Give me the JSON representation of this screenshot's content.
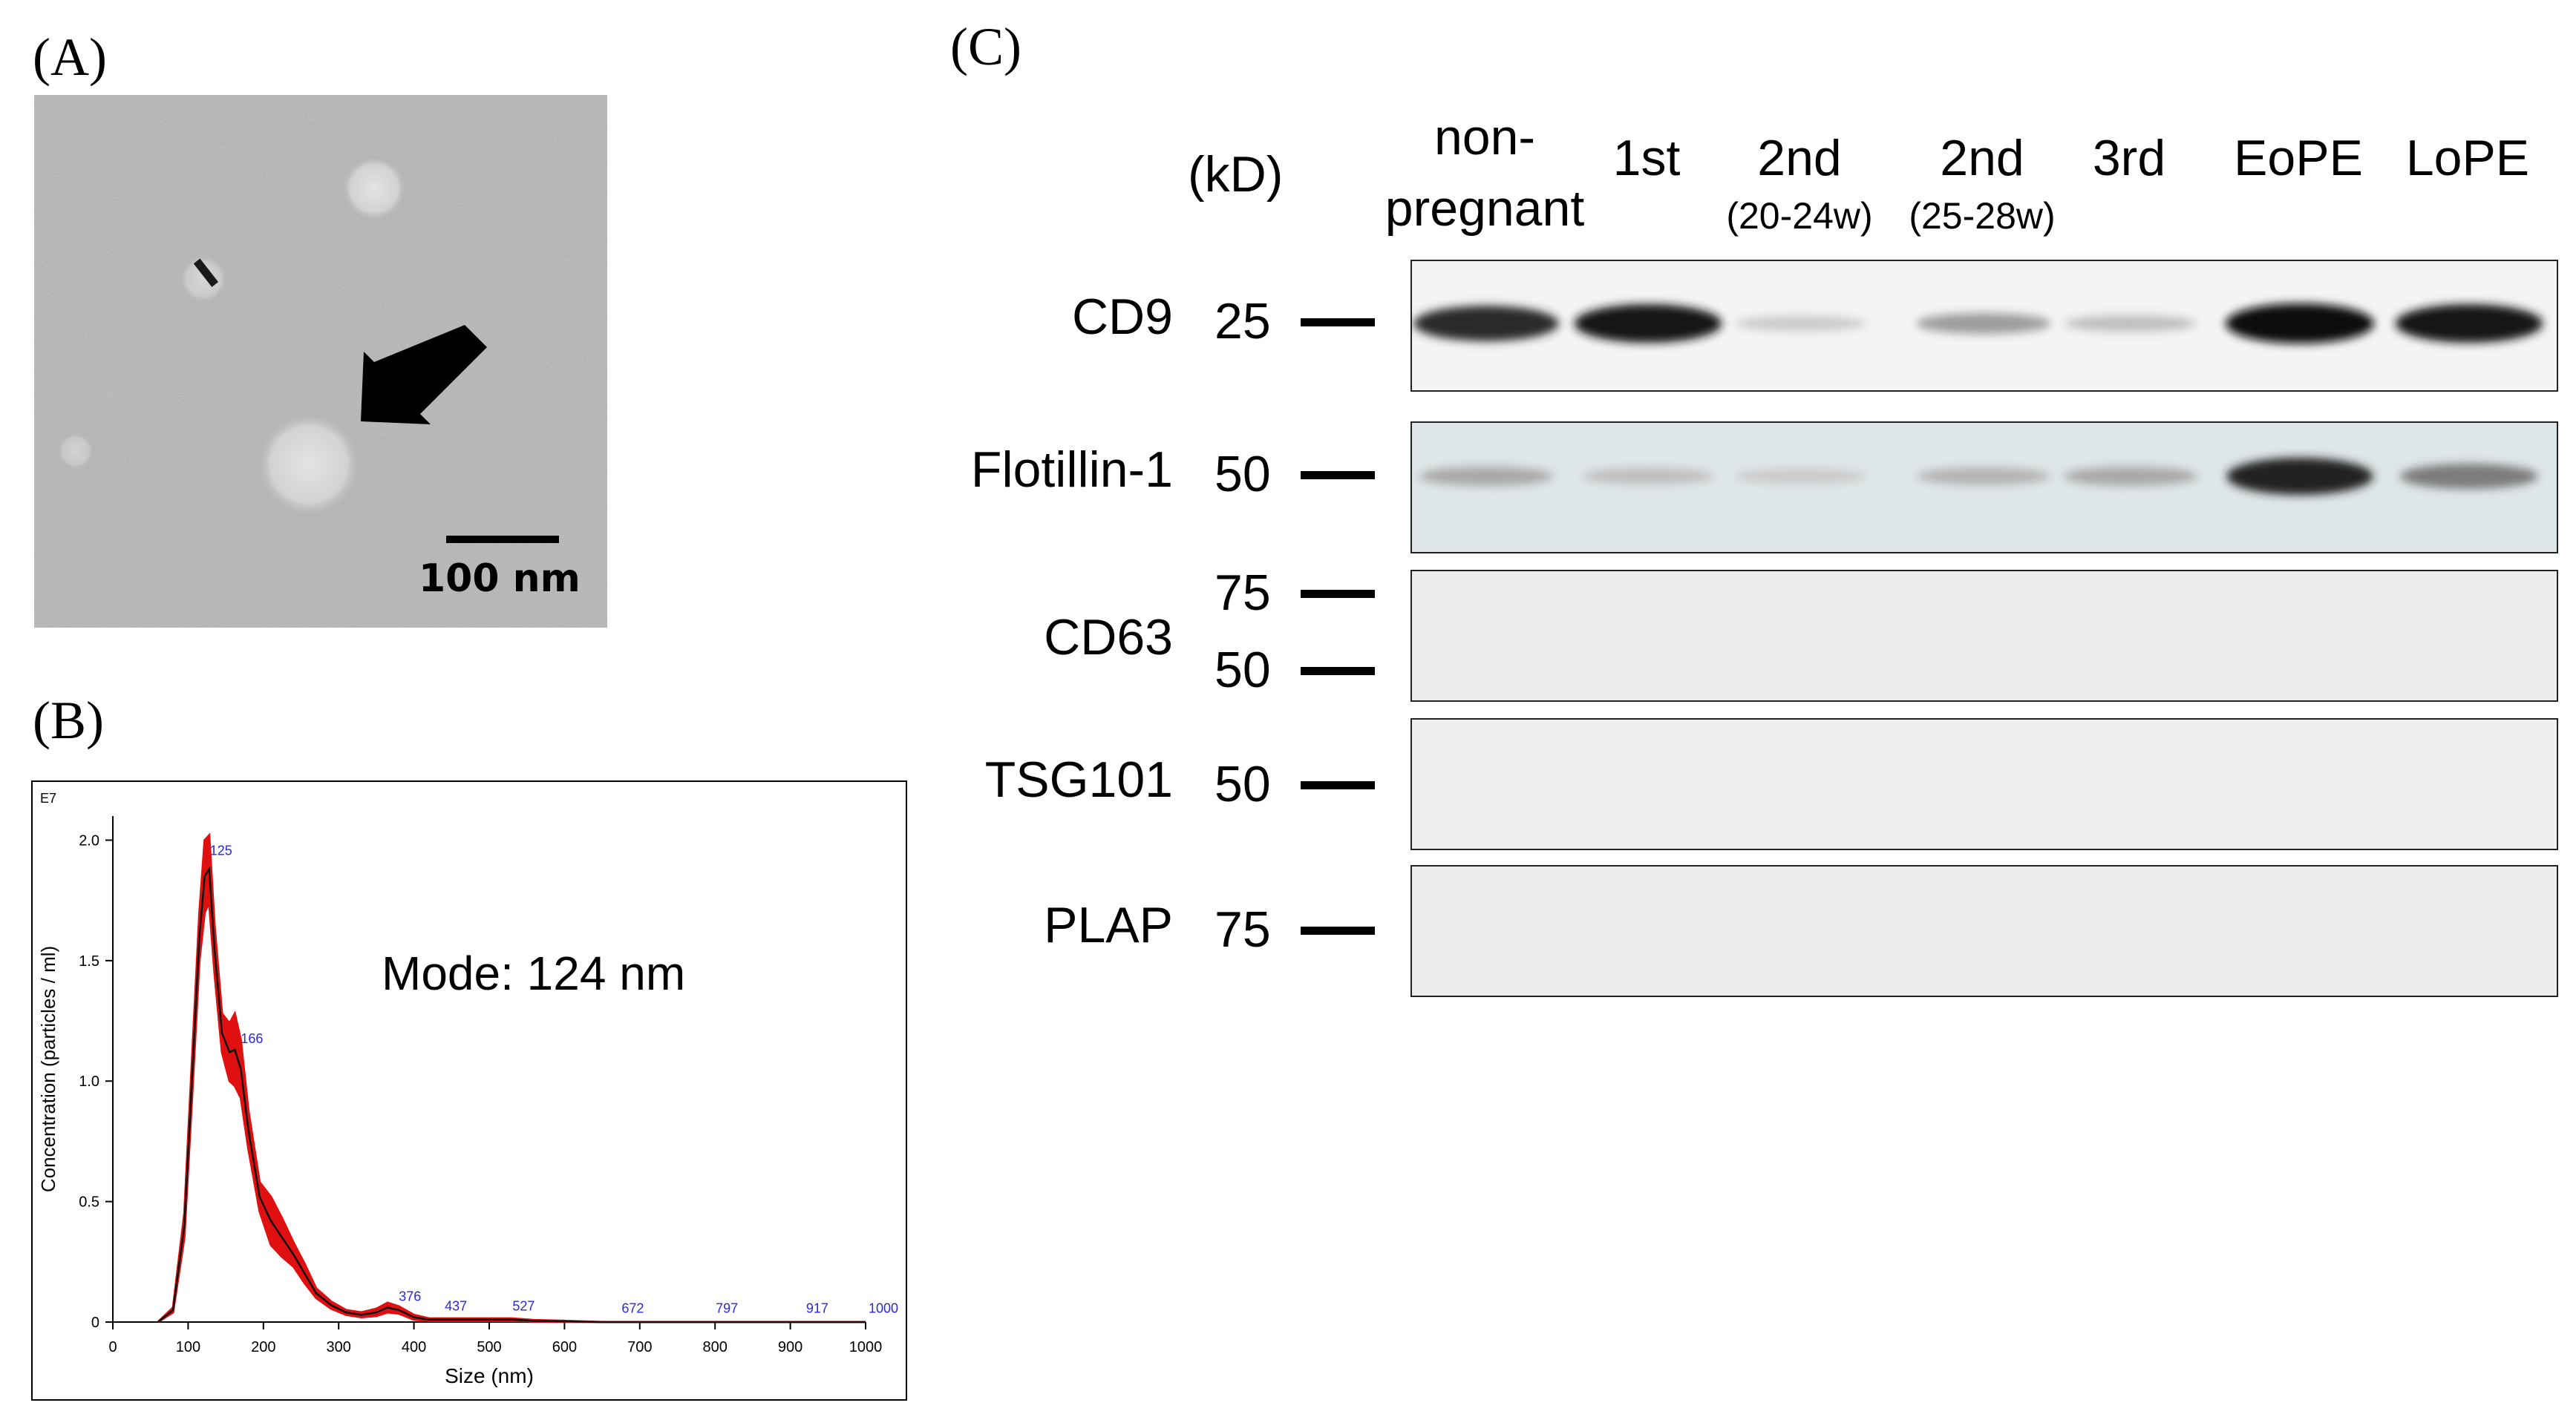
{
  "panels": {
    "a": {
      "label": "(A)",
      "scale_bar": "100 nm"
    },
    "b": {
      "label": "(B)",
      "mode_text": "Mode: 124 nm"
    },
    "c": {
      "label": "(C)"
    }
  },
  "chart_data": {
    "type": "area",
    "exponent_label": "E7",
    "xlabel": "Size (nm)",
    "ylabel": "Concentration (particles / ml)",
    "xlim": [
      0,
      1000
    ],
    "ylim": [
      0,
      2.1
    ],
    "x_ticks": [
      0,
      100,
      200,
      300,
      400,
      500,
      600,
      700,
      800,
      900,
      1000
    ],
    "y_ticks": [
      "0",
      "0.5",
      "1.0",
      "1.5",
      "2.0"
    ],
    "y_tick_values": [
      0,
      0.5,
      1.0,
      1.5,
      2.0
    ],
    "peak_labels": [
      {
        "x": 125,
        "y": 1.92,
        "text": "125"
      },
      {
        "x": 166,
        "y": 1.14,
        "text": "166"
      },
      {
        "x": 376,
        "y": 0.07,
        "text": "376"
      },
      {
        "x": 437,
        "y": 0.03,
        "text": "437"
      },
      {
        "x": 527,
        "y": 0.03,
        "text": "527"
      },
      {
        "x": 672,
        "y": 0.02,
        "text": "672"
      },
      {
        "x": 797,
        "y": 0.02,
        "text": "797"
      },
      {
        "x": 917,
        "y": 0.02,
        "text": "917"
      },
      {
        "x": 1000,
        "y": 0.02,
        "text": "1000"
      }
    ],
    "series": [
      {
        "x": [
          60,
          80,
          95,
          105,
          115,
          122,
          128,
          135,
          145,
          155,
          162,
          170,
          180,
          195,
          210,
          225,
          240,
          255,
          270,
          290,
          310,
          330,
          350,
          365,
          380,
          400,
          420,
          440,
          470,
          500,
          530,
          560,
          600,
          650,
          700,
          800,
          900,
          1000
        ],
        "y": [
          0,
          0.05,
          0.4,
          1.0,
          1.6,
          1.85,
          1.88,
          1.55,
          1.2,
          1.12,
          1.13,
          1.05,
          0.8,
          0.52,
          0.42,
          0.35,
          0.28,
          0.2,
          0.12,
          0.07,
          0.04,
          0.03,
          0.04,
          0.06,
          0.05,
          0.02,
          0.01,
          0.01,
          0.01,
          0.01,
          0.01,
          0.005,
          0.003,
          0,
          0,
          0,
          0,
          0
        ],
        "err": [
          0,
          0.01,
          0.05,
          0.08,
          0.1,
          0.15,
          0.14,
          0.1,
          0.08,
          0.12,
          0.15,
          0.12,
          0.08,
          0.06,
          0.1,
          0.08,
          0.05,
          0.04,
          0.02,
          0.015,
          0.01,
          0.01,
          0.015,
          0.02,
          0.015,
          0.01,
          0.005,
          0.005,
          0.005,
          0.005,
          0.005,
          0.003,
          0.002,
          0,
          0,
          0,
          0,
          0
        ]
      }
    ]
  },
  "blot": {
    "mw_unit": "(kD)",
    "lanes": [
      {
        "label": "non-\npregnant",
        "sub": ""
      },
      {
        "label": "1st",
        "sub": ""
      },
      {
        "label": "2nd",
        "sub": "(20-24w)"
      },
      {
        "label": "2nd",
        "sub": "(25-28w)"
      },
      {
        "label": "3rd",
        "sub": ""
      },
      {
        "label": "EoPE",
        "sub": ""
      },
      {
        "label": "LoPE",
        "sub": ""
      }
    ],
    "rows": [
      {
        "protein": "CD9",
        "markers": [
          "25"
        ],
        "intensity": [
          0.85,
          0.95,
          0.15,
          0.35,
          0.2,
          1.0,
          0.95
        ]
      },
      {
        "protein": "Flotillin-1",
        "markers": [
          "50"
        ],
        "intensity": [
          0.3,
          0.2,
          0.15,
          0.25,
          0.3,
          0.9,
          0.5
        ]
      },
      {
        "protein": "CD63",
        "markers": [
          "75",
          "50"
        ],
        "intensity": [
          0,
          0,
          0,
          0,
          0,
          0,
          0
        ]
      },
      {
        "protein": "TSG101",
        "markers": [
          "50"
        ],
        "intensity": [
          0,
          0,
          0,
          0,
          0,
          0,
          0
        ]
      },
      {
        "protein": "PLAP",
        "markers": [
          "75"
        ],
        "intensity": [
          0,
          0,
          0,
          0,
          0,
          0,
          0
        ]
      }
    ]
  }
}
